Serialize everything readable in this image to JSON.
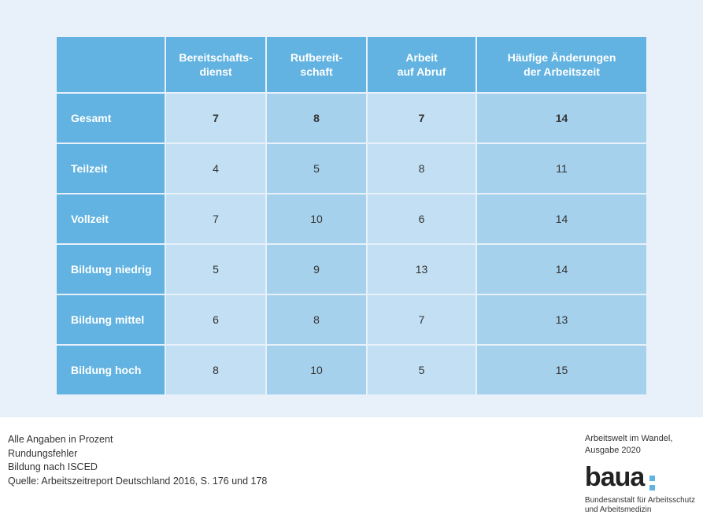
{
  "table": {
    "columns": [
      "",
      "Bereitschafts-\ndienst",
      "Rufbereit-\nschaft",
      "Arbeit\nauf Abruf",
      "Häufige Änderungen\nder Arbeitszeit"
    ],
    "column_widths_pct": [
      18.5,
      17,
      17,
      18.5,
      29
    ],
    "rows": [
      {
        "label": "Gesamt",
        "values": [
          "7",
          "8",
          "7",
          "14"
        ],
        "bold": true
      },
      {
        "label": "Teilzeit",
        "values": [
          "4",
          "5",
          "8",
          "11"
        ],
        "bold": false
      },
      {
        "label": "Vollzeit",
        "values": [
          "7",
          "10",
          "6",
          "14"
        ],
        "bold": false
      },
      {
        "label": "Bildung niedrig",
        "values": [
          "5",
          "9",
          "13",
          "14"
        ],
        "bold": false
      },
      {
        "label": "Bildung mittel",
        "values": [
          "6",
          "8",
          "7",
          "13"
        ],
        "bold": false
      },
      {
        "label": "Bildung hoch",
        "values": [
          "8",
          "10",
          "5",
          "15"
        ],
        "bold": false
      }
    ],
    "header_bg": "#62b3e1",
    "header_fg": "#ffffff",
    "row_header_bg": "#62b3e1",
    "cell_bg_a": "#c2dff3",
    "cell_bg_b": "#a6d1ec",
    "canvas_bg": "#e8f1fa"
  },
  "footer": {
    "left": [
      "Alle Angaben in Prozent",
      "Rundungsfehler",
      "Bildung nach ISCED",
      "Quelle: Arbeitszeitreport Deutschland 2016, S. 176 und 178"
    ],
    "right_lines": [
      "Arbeitswelt im Wandel,",
      "Ausgabe 2020"
    ],
    "logo_text": "baua",
    "logo_sub": [
      "Bundesanstalt für Arbeitsschutz",
      "und Arbeitsmedizin"
    ]
  }
}
